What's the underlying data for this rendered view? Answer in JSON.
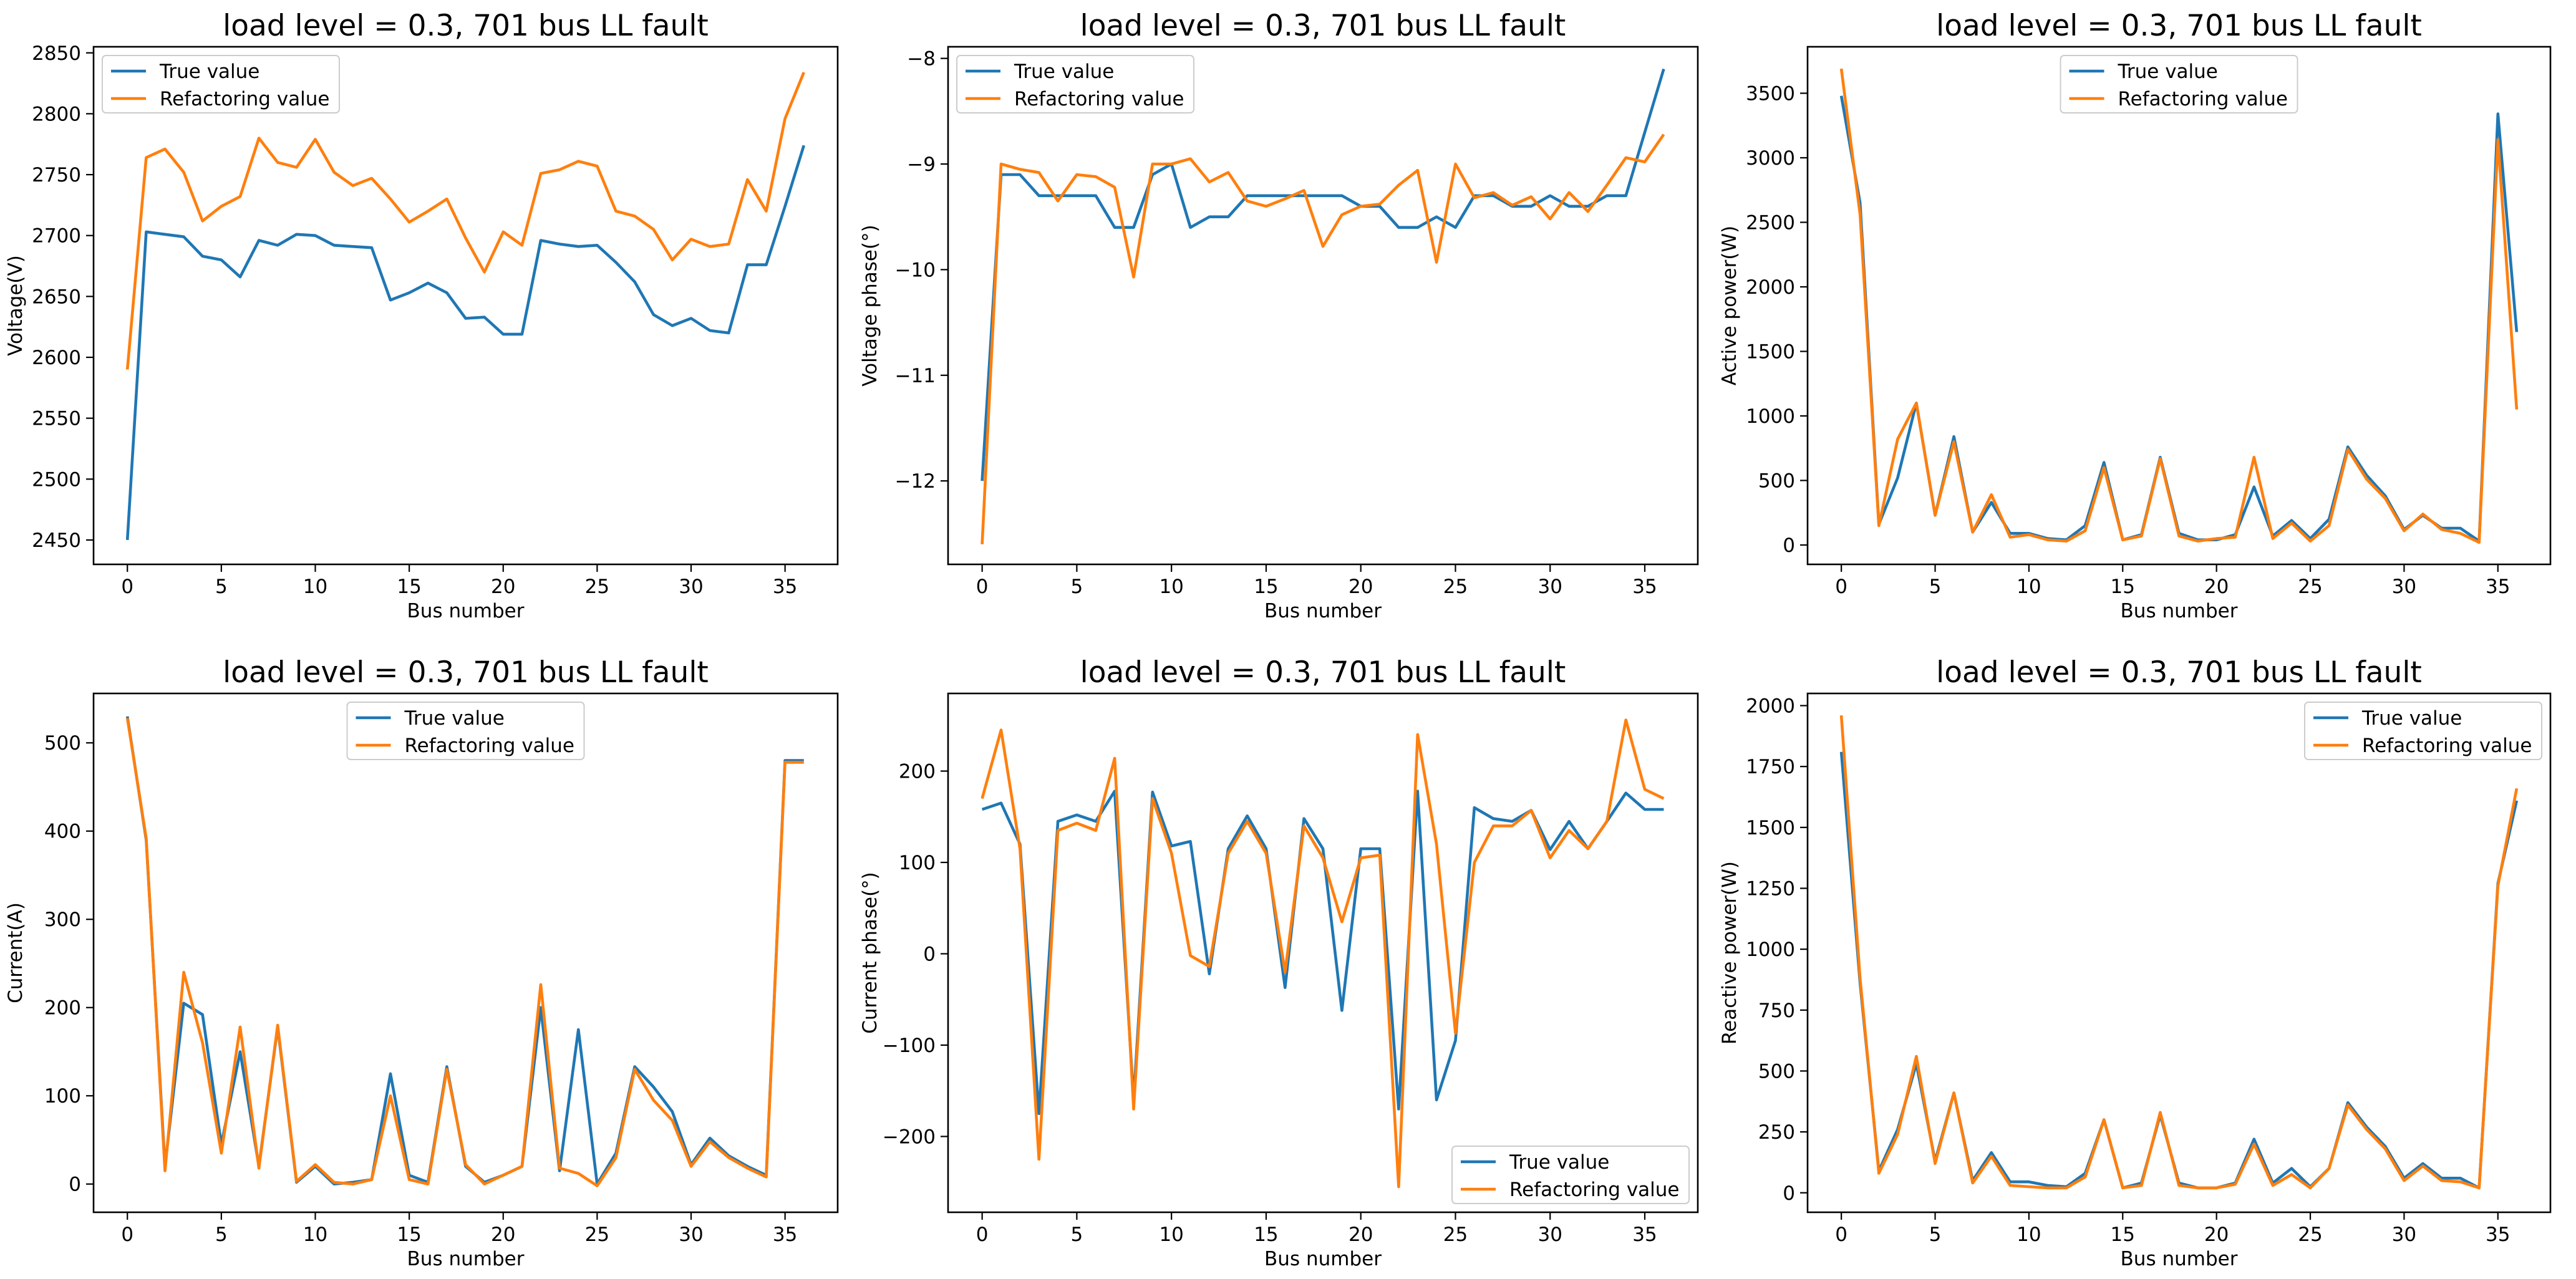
{
  "colors": {
    "true_value": "#1f77b4",
    "refactoring_value": "#ff7f0e"
  },
  "chart_data": [
    {
      "type": "line",
      "title": "load level = 0.3, 701 bus LL fault",
      "xlabel": "Bus number",
      "ylabel": "Voltage(V)",
      "xlim": [
        -1.8,
        37.8
      ],
      "ylim": [
        2430,
        2855
      ],
      "xticks": [
        0,
        5,
        10,
        15,
        20,
        25,
        30,
        35
      ],
      "xtick_labels": [
        "0",
        "5",
        "10",
        "15",
        "20",
        "25",
        "30",
        "35"
      ],
      "yticks": [
        2450,
        2500,
        2550,
        2600,
        2650,
        2700,
        2750,
        2800,
        2850
      ],
      "ytick_labels": [
        "2450",
        "2500",
        "2550",
        "2600",
        "2650",
        "2700",
        "2750",
        "2800",
        "2850"
      ],
      "legend": "upper left",
      "x": [
        0,
        1,
        2,
        3,
        4,
        5,
        6,
        7,
        8,
        9,
        10,
        11,
        12,
        13,
        14,
        15,
        16,
        17,
        18,
        19,
        20,
        21,
        22,
        23,
        24,
        25,
        26,
        27,
        28,
        29,
        30,
        31,
        32,
        33,
        34,
        35,
        36
      ],
      "series": [
        {
          "name": "True value",
          "values": [
            2450,
            2703,
            2701,
            2699,
            2683,
            2680,
            2666,
            2696,
            2692,
            2701,
            2700,
            2692,
            2691,
            2690,
            2647,
            2653,
            2661,
            2653,
            2632,
            2633,
            2619,
            2619,
            2696,
            2693,
            2691,
            2692,
            2678,
            2662,
            2635,
            2626,
            2632,
            2622,
            2620,
            2676,
            2676,
            2724,
            2774
          ]
        },
        {
          "name": "Refactoring value",
          "values": [
            2590,
            2764,
            2771,
            2752,
            2712,
            2724,
            2732,
            2780,
            2760,
            2756,
            2779,
            2752,
            2741,
            2747,
            2730,
            2711,
            2720,
            2730,
            2698,
            2670,
            2703,
            2692,
            2751,
            2754,
            2761,
            2757,
            2720,
            2716,
            2705,
            2680,
            2697,
            2691,
            2693,
            2746,
            2720,
            2796,
            2834
          ]
        }
      ]
    },
    {
      "type": "line",
      "title": "load level = 0.3, 701 bus LL fault",
      "xlabel": "Bus number",
      "ylabel": "Voltage phase(°)",
      "xlim": [
        -1.8,
        37.8
      ],
      "ylim": [
        -12.79,
        -7.89
      ],
      "xticks": [
        0,
        5,
        10,
        15,
        20,
        25,
        30,
        35
      ],
      "xtick_labels": [
        "0",
        "5",
        "10",
        "15",
        "20",
        "25",
        "30",
        "35"
      ],
      "yticks": [
        -12,
        -11,
        -10,
        -9,
        -8
      ],
      "ytick_labels": [
        "−12",
        "−11",
        "−10",
        "−9",
        "−8"
      ],
      "legend": "upper left",
      "x": [
        0,
        1,
        2,
        3,
        4,
        5,
        6,
        7,
        8,
        9,
        10,
        11,
        12,
        13,
        14,
        15,
        16,
        17,
        18,
        19,
        20,
        21,
        22,
        23,
        24,
        25,
        26,
        27,
        28,
        29,
        30,
        31,
        32,
        33,
        34,
        35,
        36
      ],
      "series": [
        {
          "name": "True value",
          "values": [
            -12.0,
            -9.1,
            -9.1,
            -9.3,
            -9.3,
            -9.3,
            -9.3,
            -9.6,
            -9.6,
            -9.1,
            -9.0,
            -9.6,
            -9.5,
            -9.5,
            -9.3,
            -9.3,
            -9.3,
            -9.3,
            -9.3,
            -9.3,
            -9.4,
            -9.4,
            -9.6,
            -9.6,
            -9.5,
            -9.6,
            -9.3,
            -9.3,
            -9.4,
            -9.4,
            -9.3,
            -9.4,
            -9.4,
            -9.3,
            -9.3,
            -8.7,
            -8.1
          ]
        },
        {
          "name": "Refactoring value",
          "values": [
            -12.6,
            -9.0,
            -9.05,
            -9.08,
            -9.35,
            -9.1,
            -9.12,
            -9.22,
            -10.07,
            -9.0,
            -9.0,
            -8.95,
            -9.17,
            -9.08,
            -9.35,
            -9.4,
            -9.33,
            -9.25,
            -9.78,
            -9.48,
            -9.4,
            -9.38,
            -9.2,
            -9.06,
            -9.93,
            -9.0,
            -9.32,
            -9.27,
            -9.39,
            -9.31,
            -9.52,
            -9.27,
            -9.45,
            -9.2,
            -8.94,
            -8.98,
            -8.72
          ]
        }
      ]
    },
    {
      "type": "line",
      "title": "load level = 0.3, 701 bus LL fault",
      "xlabel": "Bus number",
      "ylabel": "Active power(W)",
      "xlim": [
        -1.8,
        37.8
      ],
      "ylim": [
        -150,
        3860
      ],
      "xticks": [
        0,
        5,
        10,
        15,
        20,
        25,
        30,
        35
      ],
      "xtick_labels": [
        "0",
        "5",
        "10",
        "15",
        "20",
        "25",
        "30",
        "35"
      ],
      "yticks": [
        0,
        500,
        1000,
        1500,
        2000,
        2500,
        3000,
        3500
      ],
      "ytick_labels": [
        "0",
        "500",
        "1000",
        "1500",
        "2000",
        "2500",
        "3000",
        "3500"
      ],
      "legend": "upper center",
      "x": [
        0,
        1,
        2,
        3,
        4,
        5,
        6,
        7,
        8,
        9,
        10,
        11,
        12,
        13,
        14,
        15,
        16,
        17,
        18,
        19,
        20,
        21,
        22,
        23,
        24,
        25,
        26,
        27,
        28,
        29,
        30,
        31,
        32,
        33,
        34,
        35,
        36
      ],
      "series": [
        {
          "name": "True value",
          "values": [
            3480,
            2650,
            160,
            520,
            1100,
            230,
            840,
            100,
            330,
            90,
            90,
            50,
            40,
            150,
            640,
            40,
            80,
            680,
            90,
            40,
            40,
            80,
            450,
            70,
            190,
            50,
            200,
            760,
            540,
            380,
            120,
            230,
            130,
            130,
            30,
            3340,
            1650
          ]
        },
        {
          "name": "Refactoring value",
          "values": [
            3690,
            2560,
            150,
            820,
            1100,
            230,
            800,
            100,
            390,
            60,
            80,
            40,
            30,
            110,
            600,
            40,
            70,
            670,
            70,
            30,
            50,
            60,
            680,
            50,
            170,
            30,
            150,
            740,
            510,
            360,
            110,
            240,
            120,
            90,
            20,
            3140,
            1050
          ]
        }
      ]
    },
    {
      "type": "line",
      "title": "load level = 0.3, 701 bus LL fault",
      "xlabel": "Bus number",
      "ylabel": "Current(A)",
      "xlim": [
        -1.8,
        37.8
      ],
      "ylim": [
        -32,
        556
      ],
      "xticks": [
        0,
        5,
        10,
        15,
        20,
        25,
        30,
        35
      ],
      "xtick_labels": [
        "0",
        "5",
        "10",
        "15",
        "20",
        "25",
        "30",
        "35"
      ],
      "yticks": [
        0,
        100,
        200,
        300,
        400,
        500
      ],
      "ytick_labels": [
        "0",
        "100",
        "200",
        "300",
        "400",
        "500"
      ],
      "legend": "upper center",
      "x": [
        0,
        1,
        2,
        3,
        4,
        5,
        6,
        7,
        8,
        9,
        10,
        11,
        12,
        13,
        14,
        15,
        16,
        17,
        18,
        19,
        20,
        21,
        22,
        23,
        24,
        25,
        26,
        27,
        28,
        29,
        30,
        31,
        32,
        33,
        34,
        35,
        36
      ],
      "series": [
        {
          "name": "True value",
          "values": [
            530,
            390,
            20,
            205,
            192,
            45,
            150,
            20,
            178,
            2,
            20,
            0,
            2,
            5,
            125,
            10,
            2,
            133,
            20,
            2,
            10,
            20,
            200,
            15,
            175,
            0,
            35,
            133,
            110,
            82,
            22,
            52,
            32,
            20,
            10,
            480,
            480
          ]
        },
        {
          "name": "Refactoring value",
          "values": [
            528,
            392,
            15,
            240,
            160,
            35,
            178,
            18,
            180,
            3,
            22,
            2,
            0,
            5,
            100,
            5,
            0,
            130,
            22,
            0,
            10,
            20,
            226,
            18,
            12,
            -2,
            30,
            130,
            95,
            72,
            20,
            48,
            30,
            18,
            8,
            478,
            478
          ]
        }
      ]
    },
    {
      "type": "line",
      "title": "load level = 0.3, 701 bus LL fault",
      "xlabel": "Bus number",
      "ylabel": "Current phase(°)",
      "xlim": [
        -1.8,
        37.8
      ],
      "ylim": [
        -283,
        285
      ],
      "xticks": [
        0,
        5,
        10,
        15,
        20,
        25,
        30,
        35
      ],
      "xtick_labels": [
        "0",
        "5",
        "10",
        "15",
        "20",
        "25",
        "30",
        "35"
      ],
      "yticks": [
        -200,
        -100,
        0,
        100,
        200
      ],
      "ytick_labels": [
        "−200",
        "−100",
        "0",
        "100",
        "200"
      ],
      "legend": "lower right",
      "x": [
        0,
        1,
        2,
        3,
        4,
        5,
        6,
        7,
        8,
        9,
        10,
        11,
        12,
        13,
        14,
        15,
        16,
        17,
        18,
        19,
        20,
        21,
        22,
        23,
        24,
        25,
        26,
        27,
        28,
        29,
        30,
        31,
        32,
        33,
        34,
        35,
        36
      ],
      "series": [
        {
          "name": "True value",
          "values": [
            158,
            165,
            120,
            -175,
            145,
            152,
            145,
            178,
            -160,
            177,
            118,
            123,
            -22,
            115,
            151,
            115,
            -37,
            148,
            115,
            -62,
            115,
            115,
            -170,
            178,
            -160,
            -95,
            160,
            148,
            145,
            157,
            114,
            145,
            115,
            145,
            176,
            158,
            158
          ]
        },
        {
          "name": "Refactoring value",
          "values": [
            170,
            245,
            115,
            -225,
            135,
            143,
            135,
            214,
            -170,
            170,
            110,
            -2,
            -14,
            110,
            145,
            110,
            -20,
            140,
            105,
            35,
            105,
            108,
            -255,
            240,
            120,
            -87,
            100,
            140,
            140,
            157,
            105,
            135,
            115,
            145,
            256,
            180,
            170
          ]
        }
      ]
    },
    {
      "type": "line",
      "title": "load level = 0.3, 701 bus LL fault",
      "xlabel": "Bus number",
      "ylabel": "Reactive power(W)",
      "xlim": [
        -1.8,
        37.8
      ],
      "ylim": [
        -80,
        2050
      ],
      "xticks": [
        0,
        5,
        10,
        15,
        20,
        25,
        30,
        35
      ],
      "xtick_labels": [
        "0",
        "5",
        "10",
        "15",
        "20",
        "25",
        "30",
        "35"
      ],
      "yticks": [
        0,
        250,
        500,
        750,
        1000,
        1250,
        1500,
        1750,
        2000
      ],
      "ytick_labels": [
        "0",
        "250",
        "500",
        "750",
        "1000",
        "1250",
        "1500",
        "1750",
        "2000"
      ],
      "legend": "upper right",
      "x": [
        0,
        1,
        2,
        3,
        4,
        5,
        6,
        7,
        8,
        9,
        10,
        11,
        12,
        13,
        14,
        15,
        16,
        17,
        18,
        19,
        20,
        21,
        22,
        23,
        24,
        25,
        26,
        27,
        28,
        29,
        30,
        31,
        32,
        33,
        34,
        35,
        36
      ],
      "series": [
        {
          "name": "True value",
          "values": [
            1810,
            860,
            90,
            260,
            530,
            130,
            410,
            50,
            165,
            45,
            45,
            30,
            25,
            80,
            300,
            20,
            40,
            320,
            40,
            20,
            20,
            40,
            220,
            40,
            100,
            25,
            100,
            370,
            270,
            190,
            60,
            120,
            60,
            60,
            20,
            1270,
            1610
          ]
        },
        {
          "name": "Refactoring value",
          "values": [
            1960,
            880,
            80,
            240,
            560,
            120,
            410,
            40,
            150,
            30,
            25,
            20,
            20,
            65,
            300,
            20,
            30,
            330,
            30,
            20,
            20,
            35,
            200,
            30,
            75,
            20,
            100,
            360,
            260,
            180,
            50,
            110,
            50,
            45,
            20,
            1260,
            1660
          ]
        }
      ]
    }
  ]
}
